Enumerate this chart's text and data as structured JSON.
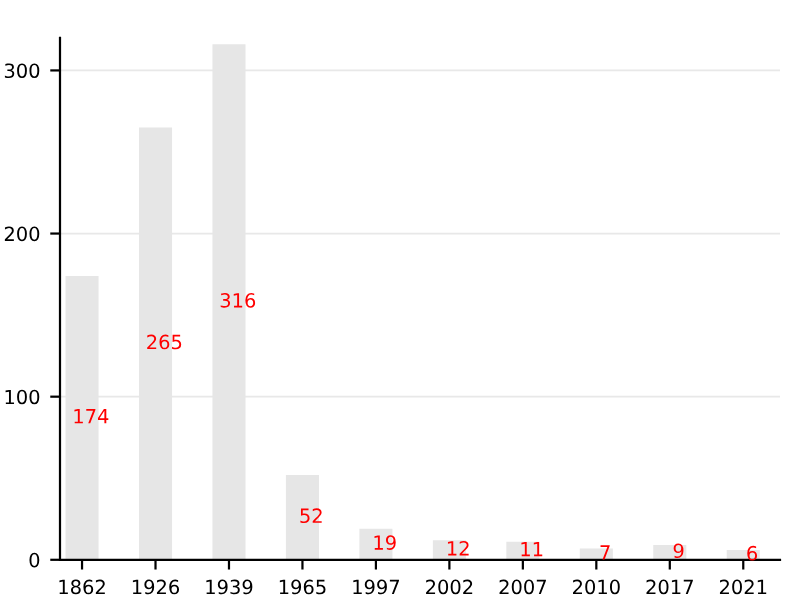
{
  "chart_data": {
    "type": "bar",
    "categories": [
      "1862",
      "1926",
      "1939",
      "1965",
      "1997",
      "2002",
      "2007",
      "2010",
      "2017",
      "2021"
    ],
    "values": [
      174,
      265,
      316,
      52,
      19,
      12,
      11,
      7,
      9,
      6
    ],
    "color": "#e6e6e6",
    "data_labels": true,
    "ylim": [
      0,
      320
    ],
    "yticks": [
      0,
      100,
      200,
      300
    ],
    "grid": "y"
  }
}
